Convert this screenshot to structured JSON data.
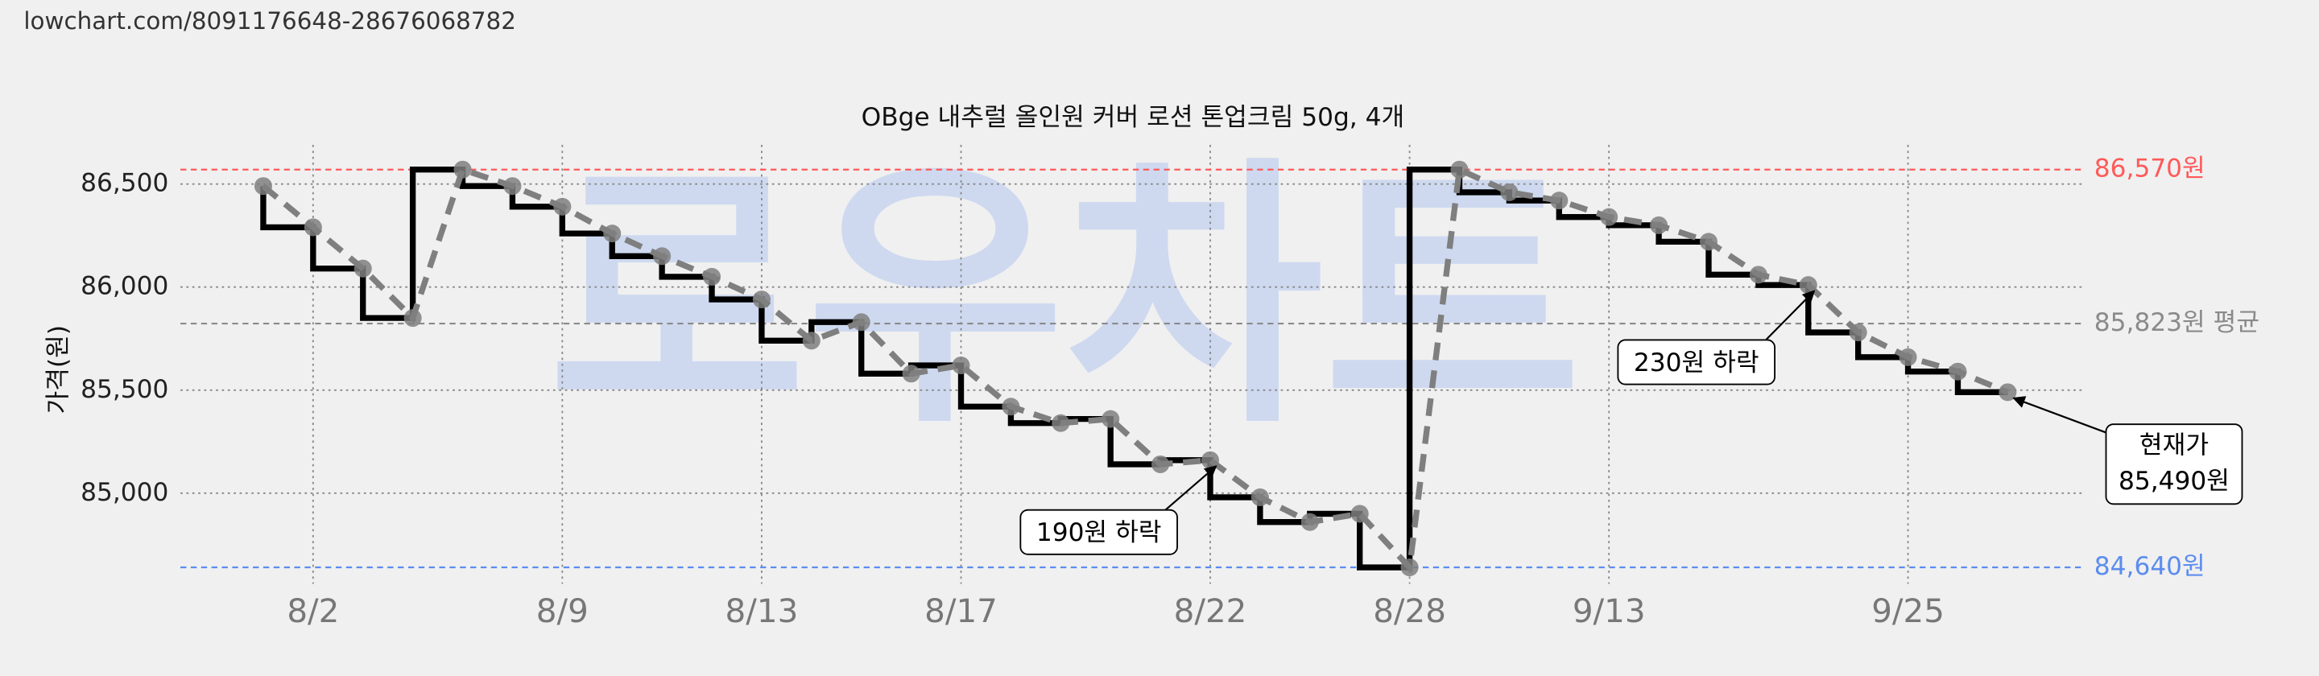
{
  "header": {
    "url": "lowchart.com/8091176648-28676068782"
  },
  "chart_data": {
    "type": "line",
    "step": "pre",
    "title": "OBge 내추럴 올인원 커버 로션 톤업크림 50g, 4개",
    "ylabel": "가격(원)",
    "watermark": "로우차트",
    "categories": [
      null,
      "8/2",
      null,
      null,
      null,
      null,
      "8/9",
      null,
      null,
      null,
      "8/13",
      null,
      null,
      null,
      "8/17",
      null,
      null,
      null,
      null,
      "8/22",
      null,
      null,
      null,
      "8/28",
      null,
      null,
      null,
      "9/13",
      null,
      null,
      null,
      null,
      null,
      "9/25",
      null,
      null
    ],
    "values": [
      86490,
      86290,
      86090,
      85850,
      86570,
      86490,
      86390,
      86260,
      86150,
      86050,
      85940,
      85740,
      85830,
      85580,
      85620,
      85420,
      85340,
      85360,
      85140,
      85160,
      84980,
      84860,
      84900,
      84640,
      86570,
      86460,
      86420,
      86340,
      86300,
      86220,
      86060,
      86010,
      85780,
      85660,
      85590,
      85490
    ],
    "color": "#000000",
    "trend_color": "#7f7f7f",
    "ylim": [
      84560,
      86690
    ],
    "yticks": [
      {
        "value": 85000,
        "label": "85,000"
      },
      {
        "value": 85500,
        "label": "85,500"
      },
      {
        "value": 86000,
        "label": "86,000"
      },
      {
        "value": 86500,
        "label": "86,500"
      }
    ],
    "grid": true,
    "reference_lines": [
      {
        "value": 86570,
        "label": "86,570원",
        "color": "#ff5a5a"
      },
      {
        "value": 85823,
        "label": "85,823원 평균",
        "color": "#8a8a8a"
      },
      {
        "value": 84640,
        "label": "84,640원",
        "color": "#5b8def"
      }
    ],
    "annotations": [
      {
        "text": "190원 하락"
      },
      {
        "text": "230원 하락"
      },
      {
        "lines": [
          "현재가",
          "85,490원"
        ]
      }
    ]
  }
}
